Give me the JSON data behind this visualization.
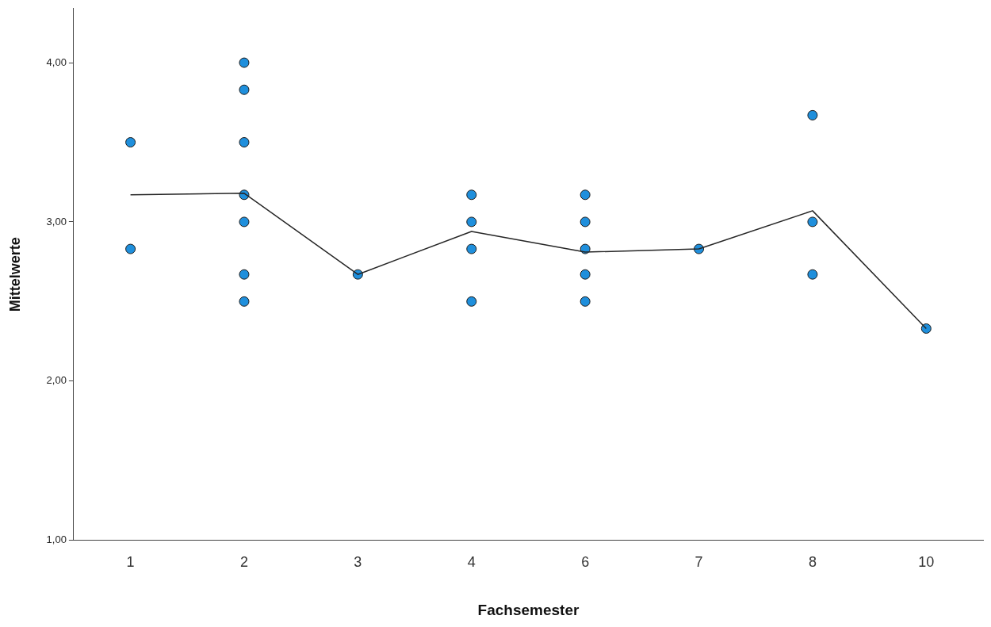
{
  "chart_data": {
    "type": "scatter",
    "xlabel": "Fachsemester",
    "ylabel": "Mittelwerte",
    "categories": [
      "1",
      "2",
      "3",
      "4",
      "6",
      "7",
      "8",
      "10"
    ],
    "ylim": [
      1,
      4.34
    ],
    "yticks": [
      {
        "value": 1,
        "label": "1,00"
      },
      {
        "value": 2,
        "label": "2,00"
      },
      {
        "value": 3,
        "label": "3,00"
      },
      {
        "value": 4,
        "label": "4,00"
      }
    ],
    "grid": false,
    "legend": false,
    "marker": "circle",
    "series": [
      {
        "type": "scatter",
        "color": "#1f8fdc",
        "x": [
          "1",
          "1",
          "2",
          "2",
          "2",
          "2",
          "2",
          "2",
          "2",
          "3",
          "4",
          "4",
          "4",
          "4",
          "6",
          "6",
          "6",
          "6",
          "6",
          "7",
          "8",
          "8",
          "8",
          "10"
        ],
        "values": [
          3.5,
          2.83,
          4.0,
          3.83,
          3.5,
          3.17,
          3.0,
          2.67,
          2.5,
          2.67,
          3.17,
          3.0,
          2.83,
          2.5,
          3.17,
          3.0,
          2.83,
          2.67,
          2.5,
          2.83,
          3.67,
          3.0,
          2.67,
          2.33
        ]
      },
      {
        "type": "line",
        "color": "#262626",
        "marker": "none",
        "values": [
          3.17,
          3.18,
          2.67,
          2.94,
          2.81,
          2.83,
          3.07,
          2.33
        ]
      }
    ]
  }
}
